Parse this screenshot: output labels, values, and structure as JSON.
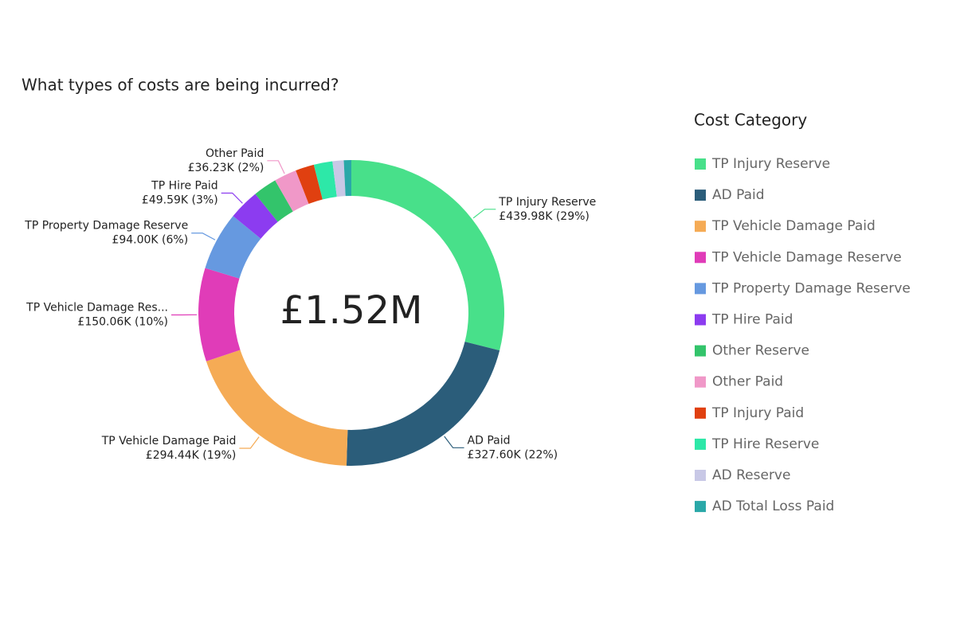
{
  "chart_data": {
    "type": "donut",
    "title": "What types of costs are being incurred?",
    "center_label": "£1.52M",
    "legend_title": "Cost Category",
    "legend": "right",
    "categories": [
      "TP Injury Reserve",
      "AD Paid",
      "TP Vehicle Damage Paid",
      "TP Vehicle Damage Reserve",
      "TP Property Damage Reserve",
      "TP Hire Paid",
      "Other Reserve",
      "Other Paid",
      "TP Injury Paid",
      "TP Hire Reserve",
      "AD Reserve",
      "AD Total Loss Paid"
    ],
    "values": [
      439980,
      327600,
      294440,
      150060,
      94000,
      49590,
      38000,
      36230,
      30000,
      30000,
      18000,
      12000
    ],
    "label_names": [
      "TP Injury Reserve",
      "AD Paid",
      "TP Vehicle Damage Paid",
      "TP Vehicle Damage Res...",
      "TP Property Damage Reserve",
      "TP Hire Paid",
      null,
      "Other Paid",
      null,
      null,
      null,
      null
    ],
    "value_labels": [
      "£439.98K (29%)",
      "£327.60K (22%)",
      "£294.44K (19%)",
      "£150.06K (10%)",
      "£94.00K (6%)",
      "£49.59K (3%)",
      null,
      "£36.23K (2%)",
      null,
      null,
      null,
      null
    ],
    "colors": [
      "#48e08a",
      "#2b5d7a",
      "#f5ab55",
      "#e03cb8",
      "#6699e0",
      "#8c3cf0",
      "#33c46b",
      "#f098c8",
      "#e04010",
      "#2de8a8",
      "#c8c8e6",
      "#2aa8a8"
    ]
  }
}
